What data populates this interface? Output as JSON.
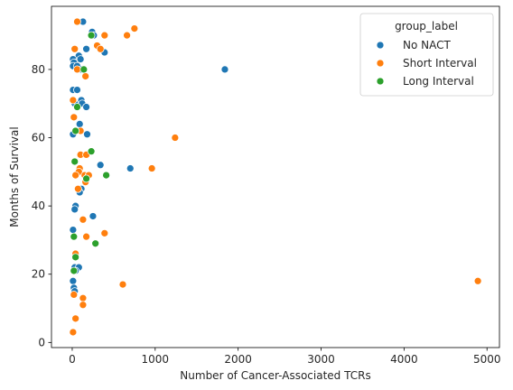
{
  "chart_data": {
    "type": "scatter",
    "xlabel": "Number of Cancer-Associated TCRs",
    "ylabel": "Months of Survival",
    "xlim": [
      -250,
      5150
    ],
    "ylim": [
      -1.5,
      98.5
    ],
    "xticks": [
      0,
      1000,
      2000,
      3000,
      4000,
      5000
    ],
    "yticks": [
      0,
      20,
      40,
      60,
      80
    ],
    "grid": false,
    "legend": {
      "title": "group_label",
      "placement": "top-right"
    },
    "series": [
      {
        "name": "No NACT",
        "color": "#1f77b4",
        "points": [
          [
            130,
            94
          ],
          [
            240,
            91
          ],
          [
            260,
            90
          ],
          [
            170,
            86
          ],
          [
            390,
            85
          ],
          [
            80,
            84
          ],
          [
            10,
            83
          ],
          [
            40,
            82
          ],
          [
            100,
            83
          ],
          [
            20,
            82
          ],
          [
            10,
            81
          ],
          [
            60,
            81
          ],
          [
            110,
            80
          ],
          [
            1840,
            80
          ],
          [
            10,
            74
          ],
          [
            60,
            74
          ],
          [
            110,
            71
          ],
          [
            120,
            70
          ],
          [
            170,
            69
          ],
          [
            30,
            70
          ],
          [
            90,
            64
          ],
          [
            180,
            61
          ],
          [
            10,
            61
          ],
          [
            340,
            52
          ],
          [
            700,
            51
          ],
          [
            110,
            45
          ],
          [
            90,
            44
          ],
          [
            40,
            40
          ],
          [
            30,
            39
          ],
          [
            250,
            37
          ],
          [
            10,
            33
          ],
          [
            170,
            31
          ],
          [
            30,
            22
          ],
          [
            80,
            22
          ],
          [
            40,
            21
          ],
          [
            10,
            18
          ],
          [
            20,
            16
          ],
          [
            30,
            15
          ]
        ]
      },
      {
        "name": "Short Interval",
        "color": "#ff7f0e",
        "points": [
          [
            60,
            94
          ],
          [
            750,
            92
          ],
          [
            660,
            90
          ],
          [
            390,
            90
          ],
          [
            300,
            87
          ],
          [
            340,
            86
          ],
          [
            30,
            86
          ],
          [
            60,
            80
          ],
          [
            160,
            78
          ],
          [
            10,
            71
          ],
          [
            20,
            66
          ],
          [
            100,
            62
          ],
          [
            1240,
            60
          ],
          [
            100,
            55
          ],
          [
            170,
            55
          ],
          [
            960,
            51
          ],
          [
            90,
            51
          ],
          [
            80,
            50
          ],
          [
            40,
            49
          ],
          [
            150,
            49
          ],
          [
            200,
            49
          ],
          [
            160,
            47
          ],
          [
            70,
            45
          ],
          [
            130,
            36
          ],
          [
            390,
            32
          ],
          [
            170,
            31
          ],
          [
            40,
            26
          ],
          [
            610,
            17
          ],
          [
            4890,
            18
          ],
          [
            20,
            14
          ],
          [
            130,
            13
          ],
          [
            130,
            11
          ],
          [
            40,
            7
          ],
          [
            10,
            3
          ]
        ]
      },
      {
        "name": "Long Interval",
        "color": "#2ca02c",
        "points": [
          [
            230,
            90
          ],
          [
            140,
            80
          ],
          [
            60,
            69
          ],
          [
            40,
            62
          ],
          [
            230,
            56
          ],
          [
            410,
            49
          ],
          [
            170,
            48
          ],
          [
            30,
            53
          ],
          [
            20,
            31
          ],
          [
            280,
            29
          ],
          [
            40,
            25
          ],
          [
            20,
            21
          ]
        ]
      }
    ]
  }
}
